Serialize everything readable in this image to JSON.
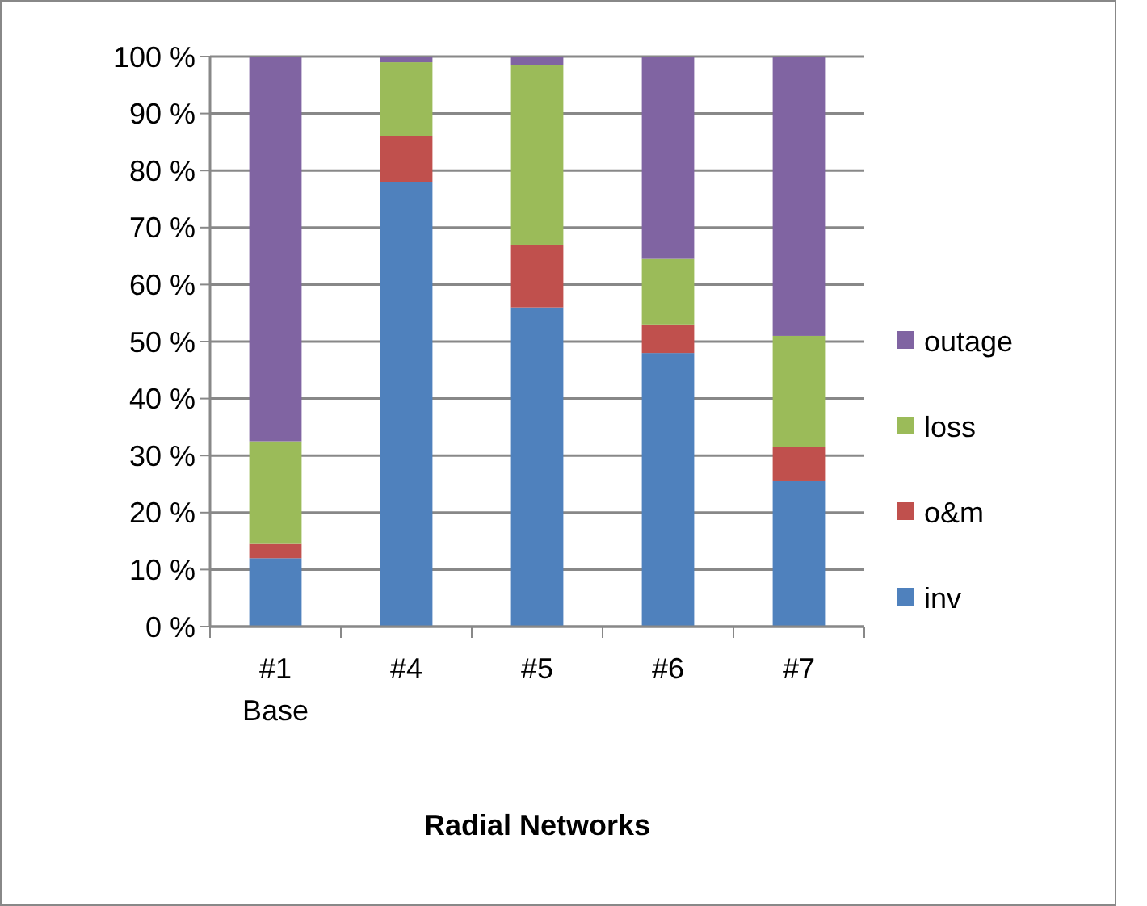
{
  "chart_data": {
    "type": "bar",
    "stacked": true,
    "xlabel": "Radial Networks",
    "categories": [
      "#1\nBase",
      "#4",
      "#5",
      "#6",
      "#7"
    ],
    "series": [
      {
        "name": "inv",
        "color": "#4f81bd",
        "values": [
          12,
          78,
          56,
          48,
          25.5
        ]
      },
      {
        "name": "o&m",
        "color": "#c0504d",
        "values": [
          2.5,
          8,
          11,
          5,
          6
        ]
      },
      {
        "name": "loss",
        "color": "#9bbb59",
        "values": [
          18,
          13,
          31.5,
          11.5,
          19.5
        ]
      },
      {
        "name": "outage",
        "color": "#8064a2",
        "values": [
          67.5,
          1,
          1.5,
          35.5,
          49
        ]
      }
    ],
    "ylim": [
      0,
      100
    ],
    "yticks": [
      {
        "value": 0,
        "label": "0 %"
      },
      {
        "value": 10,
        "label": "10 %"
      },
      {
        "value": 20,
        "label": "20 %"
      },
      {
        "value": 30,
        "label": "30 %"
      },
      {
        "value": 40,
        "label": "40 %"
      },
      {
        "value": 50,
        "label": "50 %"
      },
      {
        "value": 60,
        "label": "60 %"
      },
      {
        "value": 70,
        "label": "70 %"
      },
      {
        "value": 80,
        "label": "80 %"
      },
      {
        "value": 90,
        "label": "90 %"
      },
      {
        "value": 100,
        "label": "100 %"
      }
    ],
    "grid": "y",
    "legend": "right"
  }
}
